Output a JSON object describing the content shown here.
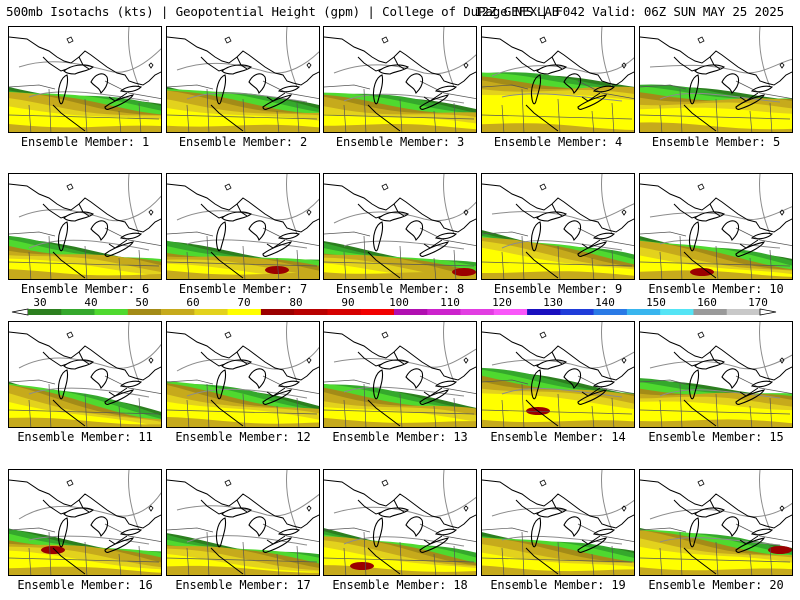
{
  "header": {
    "product": "500mb Isotachs (kts) | Geopotential Height (gpm) | College of DuPage NEXLAB",
    "run_info": "12Z GEFS | F042 Valid: 06Z SUN MAY 25 2025"
  },
  "panel_caption_prefix": "Ensemble Member:",
  "members": [
    {
      "label": "Ensemble Member: 1"
    },
    {
      "label": "Ensemble Member: 2"
    },
    {
      "label": "Ensemble Member: 3"
    },
    {
      "label": "Ensemble Member: 4"
    },
    {
      "label": "Ensemble Member: 5"
    },
    {
      "label": "Ensemble Member: 6"
    },
    {
      "label": "Ensemble Member: 7"
    },
    {
      "label": "Ensemble Member: 8"
    },
    {
      "label": "Ensemble Member: 9"
    },
    {
      "label": "Ensemble Member: 10"
    },
    {
      "label": "Ensemble Member: 11"
    },
    {
      "label": "Ensemble Member: 12"
    },
    {
      "label": "Ensemble Member: 13"
    },
    {
      "label": "Ensemble Member: 14"
    },
    {
      "label": "Ensemble Member: 15"
    },
    {
      "label": "Ensemble Member: 16"
    },
    {
      "label": "Ensemble Member: 17"
    },
    {
      "label": "Ensemble Member: 18"
    },
    {
      "label": "Ensemble Member: 19"
    },
    {
      "label": "Ensemble Member: 20"
    }
  ],
  "colorbar": {
    "units": "kts",
    "tick_labels": [
      "30",
      "40",
      "50",
      "60",
      "70",
      "80",
      "90",
      "100",
      "110",
      "120",
      "130",
      "140",
      "150",
      "160",
      "170"
    ],
    "colors": [
      "#2c7f1f",
      "#35a82c",
      "#4fd92f",
      "#a38b17",
      "#c6aa1c",
      "#e3d21d",
      "#ffff00",
      "#9b0000",
      "#b80000",
      "#d60000",
      "#f20000",
      "#b00fb0",
      "#cc22cc",
      "#e23de2",
      "#f956f9",
      "#1a0fbf",
      "#1f3cd9",
      "#2a7ae6",
      "#39b5ee",
      "#55e4f5",
      "#9a9a9a",
      "#c8c8c8"
    ]
  },
  "map_layers": [
    "wind-speed-shading",
    "geopotential-height-contours",
    "state-boundaries",
    "great-lakes-coastline"
  ]
}
